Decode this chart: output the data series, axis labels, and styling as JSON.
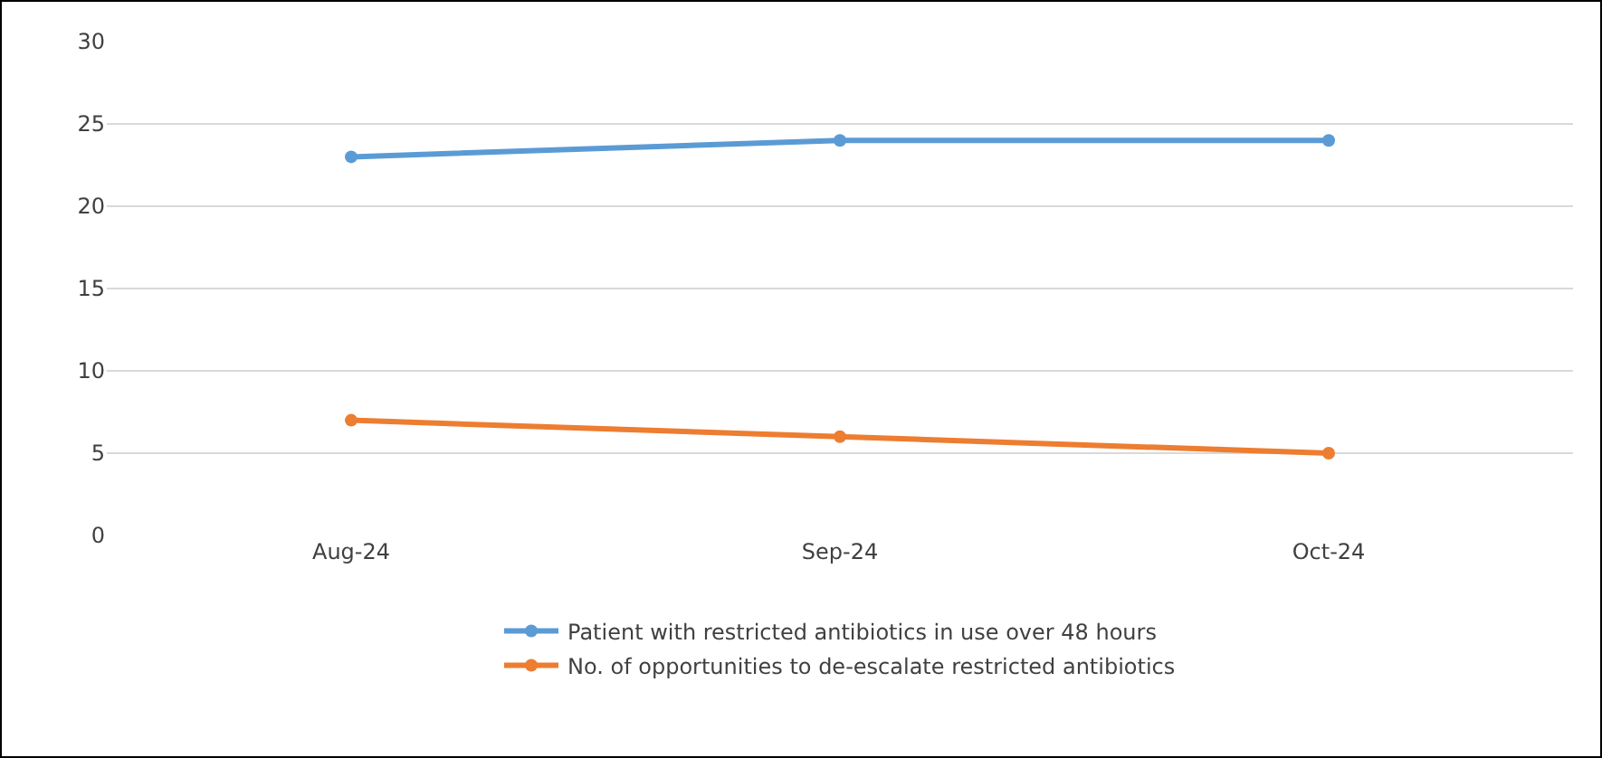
{
  "chart_data": {
    "type": "line",
    "categories": [
      "Aug-24",
      "Sep-24",
      "Oct-24"
    ],
    "series": [
      {
        "name": "Patient with restricted antibiotics in use over 48 hours",
        "color": "#5b9bd5",
        "values": [
          23,
          24,
          24
        ]
      },
      {
        "name": "No. of opportunities to de-escalate restricted antibiotics",
        "color": "#ed7d31",
        "values": [
          7,
          6,
          5
        ]
      }
    ],
    "ylim": [
      0,
      30
    ],
    "yticks": [
      0,
      5,
      10,
      15,
      20,
      25,
      30
    ],
    "grid": "y",
    "legend": "bottom",
    "marker": "circle",
    "line_style": "solid"
  }
}
